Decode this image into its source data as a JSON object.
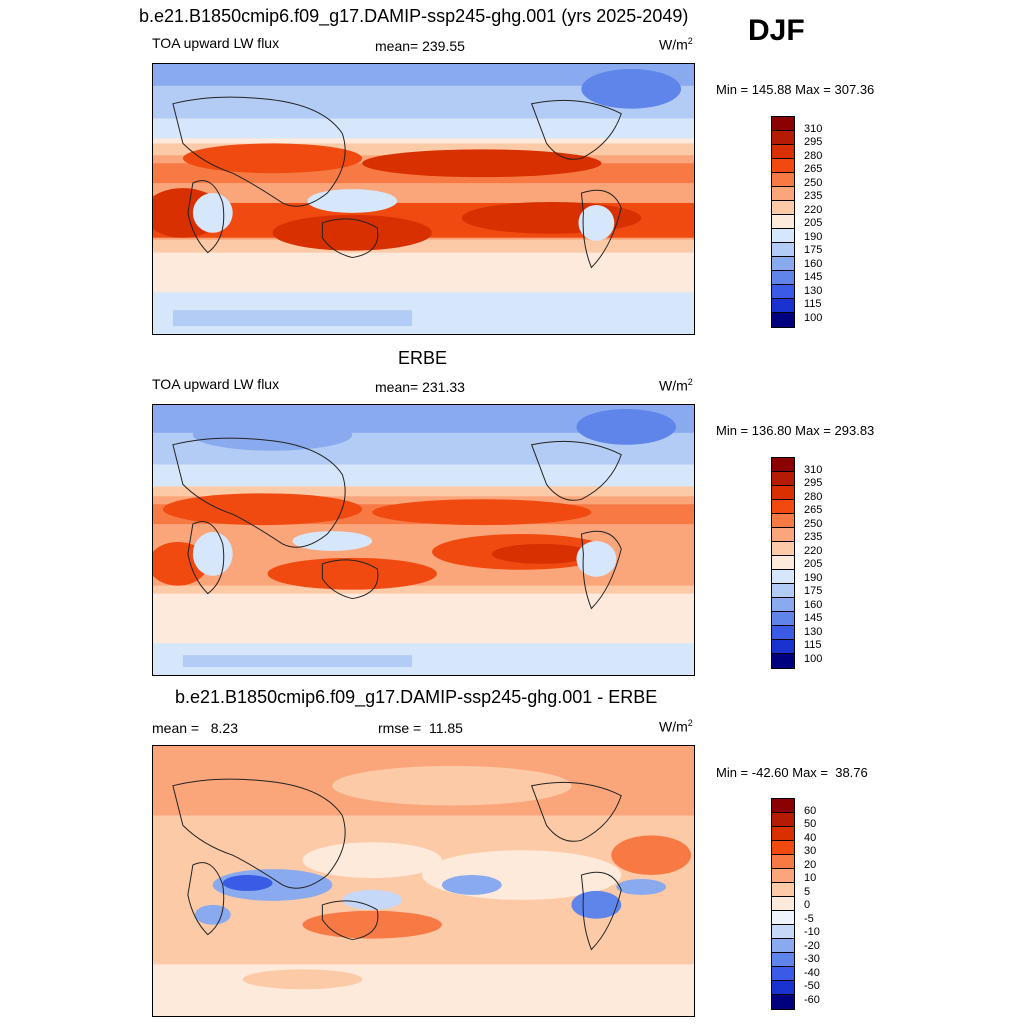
{
  "season": "DJF",
  "panels": [
    {
      "title": "b.e21.B1850cmip6.f09_g17.DAMIP-ssp245-ghg.001 (yrs 2025-2049)",
      "left_label": "TOA upward LW flux",
      "center_label": "mean= 239.55",
      "units": "W/m",
      "units_sup": "2",
      "minmax": "Min = 145.88 Max = 307.36",
      "levels": [
        "310",
        "295",
        "280",
        "265",
        "250",
        "235",
        "220",
        "205",
        "190",
        "175",
        "160",
        "145",
        "130",
        "115",
        "100"
      ]
    },
    {
      "title": "ERBE",
      "left_label": "TOA upward LW flux",
      "center_label": "mean= 231.33",
      "units": "W/m",
      "units_sup": "2",
      "minmax": "Min = 136.80 Max = 293.83",
      "levels": [
        "310",
        "295",
        "280",
        "265",
        "250",
        "235",
        "220",
        "205",
        "190",
        "175",
        "160",
        "145",
        "130",
        "115",
        "100"
      ]
    },
    {
      "title": "b.e21.B1850cmip6.f09_g17.DAMIP-ssp245-ghg.001 - ERBE",
      "left_label": "mean =   8.23",
      "center_label": "rmse =  11.85",
      "units": "W/m",
      "units_sup": "2",
      "minmax": "Min = -42.60 Max =  38.76",
      "levels": [
        "60",
        "50",
        "40",
        "30",
        "20",
        "10",
        "5",
        "0",
        "-5",
        "-10",
        "-20",
        "-30",
        "-40",
        "-50",
        "-60"
      ]
    }
  ],
  "colors": {
    "abs_scale": [
      "#8b0000",
      "#b51b00",
      "#d83000",
      "#f04a10",
      "#f77a45",
      "#fba57b",
      "#fdcaa8",
      "#feeadb",
      "#d6e6fb",
      "#b3ccf5",
      "#8aaaef",
      "#5f84ea",
      "#3a5be5",
      "#1a33d0",
      "#00007f"
    ],
    "diff_scale": [
      "#8b0000",
      "#b51b00",
      "#d83000",
      "#f04a10",
      "#f77a45",
      "#fba57b",
      "#fdcaa8",
      "#feeadb",
      "#eef3fc",
      "#c5d8f8",
      "#8aaaef",
      "#5f84ea",
      "#3a5be5",
      "#1a33d0",
      "#00007f"
    ]
  }
}
